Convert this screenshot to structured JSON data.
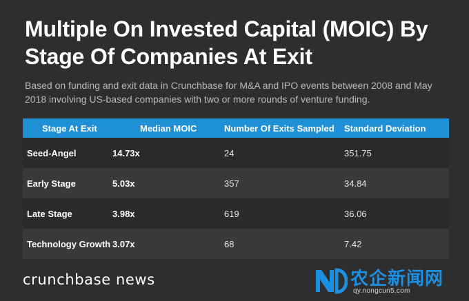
{
  "title": "Multiple On Invested Capital (MOIC) By Stage Of Companies At Exit",
  "subtitle": "Based on funding and exit data in Crunchbase for M&A and IPO events between 2008 and May 2018 involving US-based companies with two or more rounds of venture funding.",
  "chart_data": {
    "type": "table",
    "columns": [
      "Stage At Exit",
      "Median MOIC",
      "Number Of Exits Sampled",
      "Standard Deviation"
    ],
    "rows": [
      [
        "Seed-Angel",
        "14.73x",
        "24",
        "351.75"
      ],
      [
        "Early Stage",
        "5.03x",
        "357",
        "34.84"
      ],
      [
        "Late Stage",
        "3.98x",
        "619",
        "36.06"
      ],
      [
        "Technology Growth",
        "3.07x",
        "68",
        "7.42"
      ]
    ]
  },
  "brand": "crunchbase news",
  "watermark": {
    "text": "农企新闻网",
    "url": "qy.nongcun5.com"
  },
  "colors": {
    "background": "#2e2e2e",
    "header": "#1f8fd6",
    "row_dark": "#2b2b2b",
    "row_light": "#3a3a3a",
    "watermark": "#1d8fe0"
  }
}
